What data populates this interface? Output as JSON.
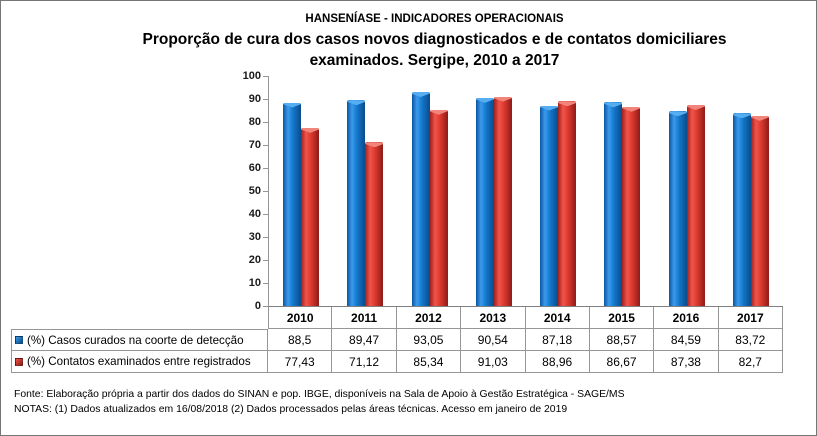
{
  "title": {
    "line1": "HANSENÍASE - INDICADORES OPERACIONAIS",
    "line2": "Proporção de cura dos casos novos diagnosticados e de contatos domiciliares",
    "line3": "examinados. Sergipe, 2010 a 2017"
  },
  "chart_data": {
    "type": "bar",
    "title": "Proporção de cura dos casos novos diagnosticados e de contatos domiciliares examinados. Sergipe, 2010 a 2017",
    "categories": [
      "2010",
      "2011",
      "2012",
      "2013",
      "2014",
      "2015",
      "2016",
      "2017"
    ],
    "series": [
      {
        "key": "casos-curados",
        "name": "(%) Casos curados na coorte de detecção",
        "color": "#1878c8",
        "gradient": [
          "#0b55a0",
          "#3a9bec",
          "#1478cd",
          "#0a4b8c"
        ],
        "bevel": "#56aef0",
        "values": [
          88.5,
          89.47,
          93.05,
          90.54,
          87.18,
          88.57,
          84.59,
          83.72
        ],
        "display_values": [
          "88,5",
          "89,47",
          "93,05",
          "90,54",
          "87,18",
          "88,57",
          "84,59",
          "83,72"
        ]
      },
      {
        "key": "contatos-examinados",
        "name": "(%) Contatos examinados entre registrados",
        "color": "#dd3b30",
        "gradient": [
          "#9e211c",
          "#f1544a",
          "#dd3a2f",
          "#8c1c17"
        ],
        "bevel": "#f2857b",
        "values": [
          77.43,
          71.12,
          85.34,
          91.03,
          88.96,
          86.67,
          87.38,
          82.7
        ],
        "display_values": [
          "77,43",
          "71,12",
          "85,34",
          "91,03",
          "88,96",
          "86,67",
          "87,38",
          "82,7"
        ]
      }
    ],
    "xlabel": "",
    "ylabel": "",
    "ylim": [
      0,
      100
    ],
    "ytick_step": 10,
    "grid": false,
    "legend_position": "table-rows-left"
  },
  "footer": {
    "fonte": "Fonte: Elaboração própria a partir dos dados do SINAN e pop. IBGE, disponíveis na Sala de Apoio à Gestão Estratégica - SAGE/MS",
    "notas": "NOTAS: (1) Dados atualizados em 16/08/2018 (2) Dados processados pelas áreas técnicas. Acesso em janeiro de 2019"
  }
}
